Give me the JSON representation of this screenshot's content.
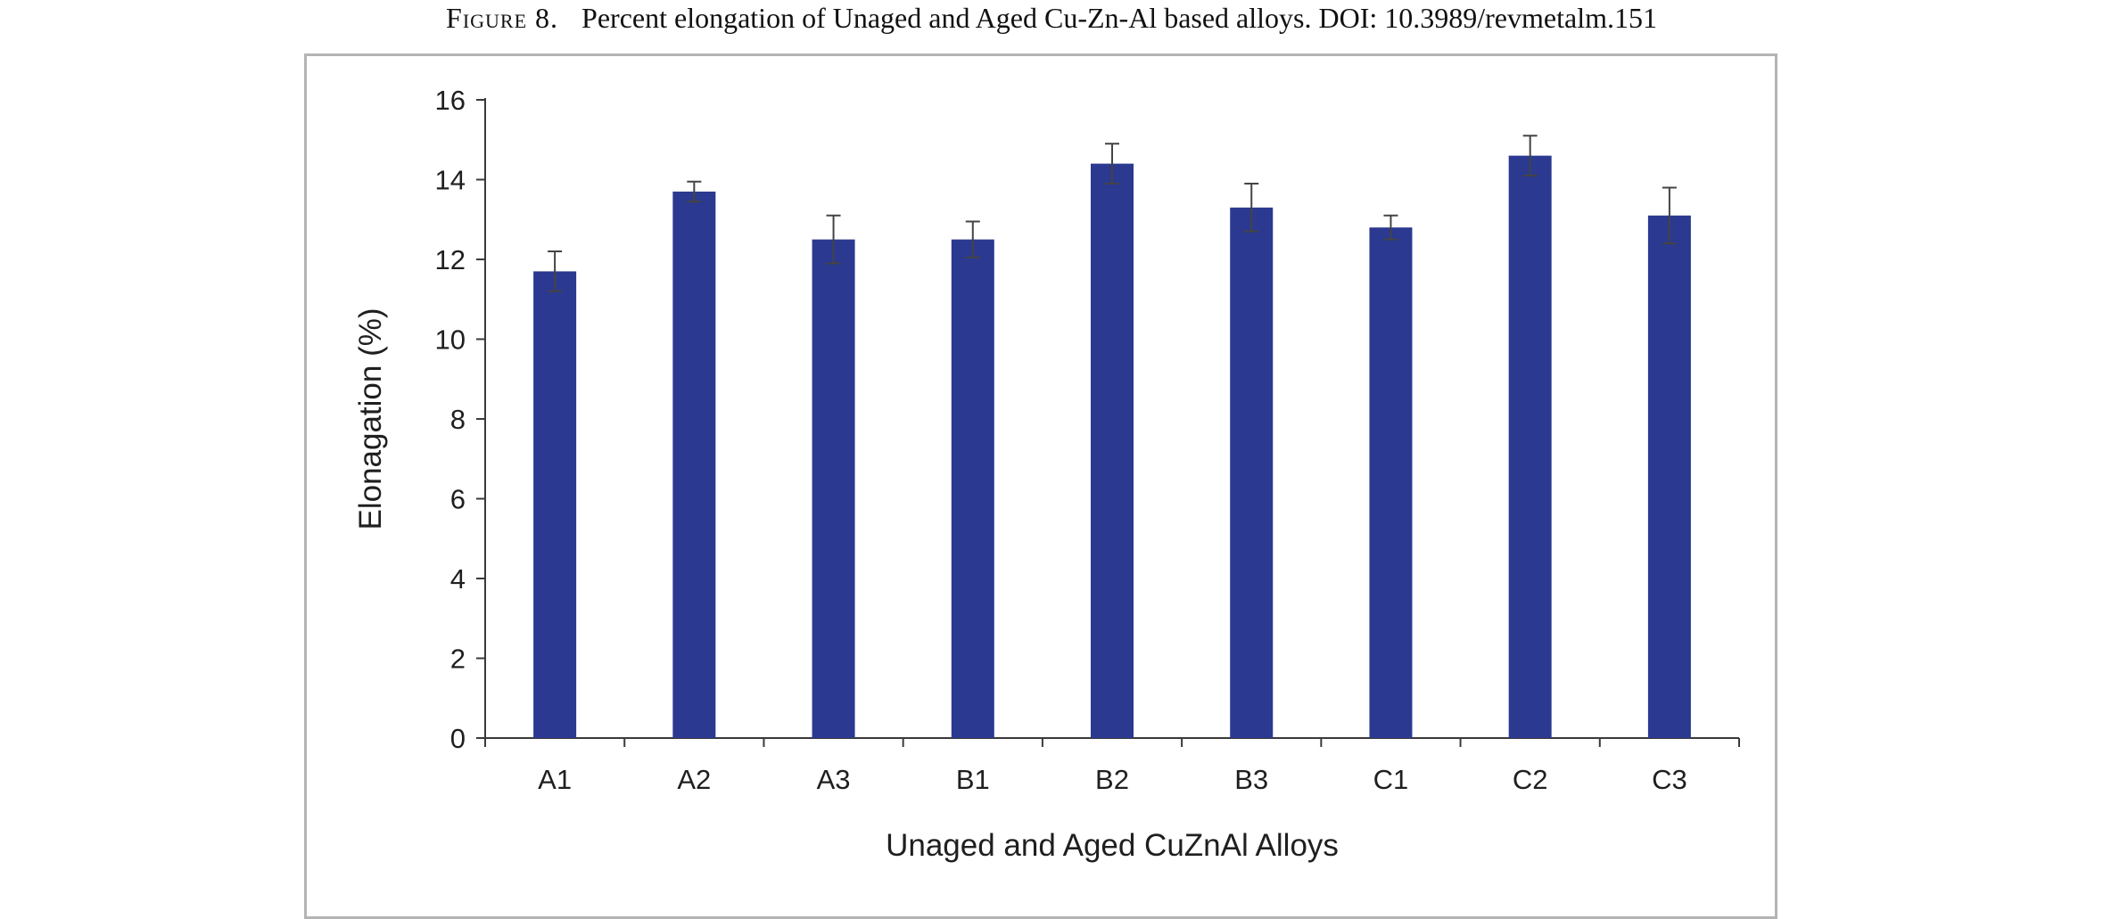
{
  "caption": {
    "figure_label": "Figure 8.",
    "text": "Percent elongation of Unaged and Aged Cu-Zn-Al based alloys.  DOI: 10.3989/revmetalm.151"
  },
  "chart_data": {
    "type": "bar",
    "title": "",
    "xlabel": "Unaged and Aged CuZnAl Alloys",
    "ylabel": "Elonagation (%)",
    "categories": [
      "A1",
      "A2",
      "A3",
      "B1",
      "B2",
      "B3",
      "C1",
      "C2",
      "C3"
    ],
    "values": [
      11.7,
      13.7,
      12.5,
      12.5,
      14.4,
      13.3,
      12.8,
      14.6,
      13.1
    ],
    "errors": [
      0.5,
      0.25,
      0.6,
      0.45,
      0.5,
      0.6,
      0.3,
      0.5,
      0.7
    ],
    "ylim": [
      0,
      16
    ],
    "yticks": [
      0,
      2,
      4,
      6,
      8,
      10,
      12,
      14,
      16
    ],
    "grid": false,
    "legend": "none",
    "bar_color": "#2b3990",
    "axis_color": "#3a3a3a",
    "errorbar_color": "#444444"
  }
}
